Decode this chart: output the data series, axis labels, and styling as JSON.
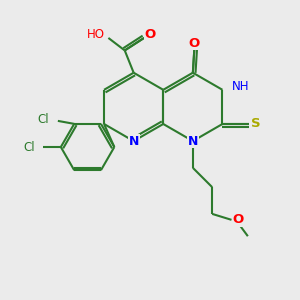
{
  "background_color": "#ebebeb",
  "bond_color": "#2d7a2d",
  "bond_width": 1.5,
  "atom_colors": {
    "N": "#0000ff",
    "O": "#ff0000",
    "S": "#aaaa00",
    "Cl": "#2d7a2d",
    "C": "#2d7a2d",
    "H": "#808080"
  },
  "font_size": 8.5,
  "fig_w": 3.0,
  "fig_h": 3.0,
  "dpi": 100
}
